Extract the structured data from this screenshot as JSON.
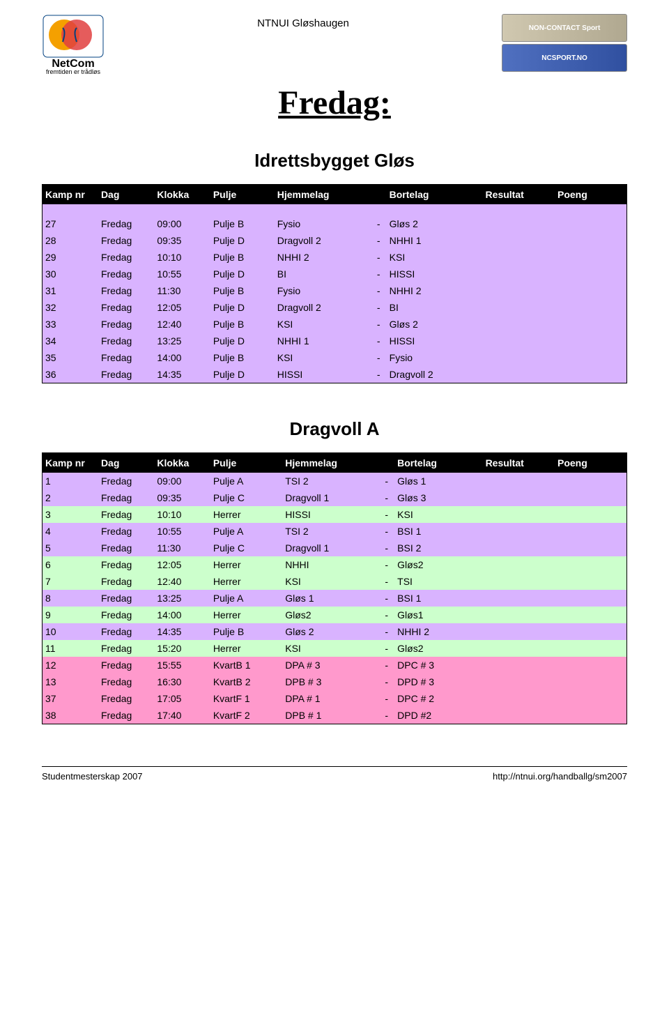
{
  "header": {
    "center_text": "NTNUI Gløshaugen",
    "logo_left_brand": "NetCom",
    "logo_left_tagline": "fremtiden er trådløs",
    "ad_text_1": "NON-CONTACT Sport",
    "ad_text_2": "NCSPORT.NO"
  },
  "main_title": "Fredag:",
  "table1": {
    "title": "Idrettsbygget Gløs",
    "columns": [
      "Kamp nr",
      "Dag",
      "Klokka",
      "Pulje",
      "Hjemmelag",
      "",
      "Bortelag",
      "Resultat",
      "Poeng"
    ],
    "col_widths": [
      "70px",
      "70px",
      "70px",
      "80px",
      "120px",
      "20px",
      "120px",
      "90px",
      "90px"
    ],
    "header_bg": "#000000",
    "header_fg": "#ffffff",
    "colors": {
      "purple": "#d9b3ff"
    },
    "spacer_color": "#d9b3ff",
    "rows": [
      {
        "c": "#d9b3ff",
        "cells": [
          "27",
          "Fredag",
          "09:00",
          "Pulje B",
          "Fysio",
          "-",
          "Gløs 2",
          "",
          ""
        ]
      },
      {
        "c": "#d9b3ff",
        "cells": [
          "28",
          "Fredag",
          "09:35",
          "Pulje D",
          "Dragvoll 2",
          "-",
          "NHHI 1",
          "",
          ""
        ]
      },
      {
        "c": "#d9b3ff",
        "cells": [
          "29",
          "Fredag",
          "10:10",
          "Pulje B",
          "NHHI 2",
          "-",
          "KSI",
          "",
          ""
        ]
      },
      {
        "c": "#d9b3ff",
        "cells": [
          "30",
          "Fredag",
          "10:55",
          "Pulje D",
          "BI",
          "-",
          "HISSI",
          "",
          ""
        ]
      },
      {
        "c": "#d9b3ff",
        "cells": [
          "31",
          "Fredag",
          "11:30",
          "Pulje B",
          "Fysio",
          "-",
          "NHHI 2",
          "",
          ""
        ]
      },
      {
        "c": "#d9b3ff",
        "cells": [
          "32",
          "Fredag",
          "12:05",
          "Pulje D",
          "Dragvoll 2",
          "-",
          "BI",
          "",
          ""
        ]
      },
      {
        "c": "#d9b3ff",
        "cells": [
          "33",
          "Fredag",
          "12:40",
          "Pulje B",
          "KSI",
          "-",
          "Gløs 2",
          "",
          ""
        ]
      },
      {
        "c": "#d9b3ff",
        "cells": [
          "34",
          "Fredag",
          "13:25",
          "Pulje D",
          "NHHI 1",
          "-",
          "HISSI",
          "",
          ""
        ]
      },
      {
        "c": "#d9b3ff",
        "cells": [
          "35",
          "Fredag",
          "14:00",
          "Pulje B",
          "KSI",
          "-",
          "Fysio",
          "",
          ""
        ]
      },
      {
        "c": "#d9b3ff",
        "cells": [
          "36",
          "Fredag",
          "14:35",
          "Pulje D",
          "HISSI",
          "-",
          "Dragvoll 2",
          "",
          ""
        ]
      }
    ]
  },
  "table2": {
    "title": "Dragvoll A",
    "columns": [
      "Kamp nr",
      "Dag",
      "Klokka",
      "Pulje",
      "Hjemmelag",
      "",
      "Bortelag",
      "Resultat",
      "Poeng"
    ],
    "col_widths": [
      "70px",
      "70px",
      "70px",
      "90px",
      "120px",
      "20px",
      "110px",
      "90px",
      "90px"
    ],
    "colors": {
      "purple": "#d9b3ff",
      "green": "#ccffcc",
      "pink": "#ff99cc"
    },
    "rows": [
      {
        "c": "#d9b3ff",
        "cells": [
          "1",
          "Fredag",
          "09:00",
          "Pulje A",
          "TSI 2",
          "-",
          "Gløs 1",
          "",
          ""
        ]
      },
      {
        "c": "#d9b3ff",
        "cells": [
          "2",
          "Fredag",
          "09:35",
          "Pulje C",
          "Dragvoll 1",
          "-",
          "Gløs 3",
          "",
          ""
        ]
      },
      {
        "c": "#ccffcc",
        "cells": [
          "3",
          "Fredag",
          "10:10",
          "Herrer",
          "HISSI",
          "-",
          "KSI",
          "",
          ""
        ]
      },
      {
        "c": "#d9b3ff",
        "cells": [
          "4",
          "Fredag",
          "10:55",
          "Pulje A",
          "TSI 2",
          "-",
          "BSI 1",
          "",
          ""
        ]
      },
      {
        "c": "#d9b3ff",
        "cells": [
          "5",
          "Fredag",
          "11:30",
          "Pulje C",
          "Dragvoll 1",
          "-",
          "BSI 2",
          "",
          ""
        ]
      },
      {
        "c": "#ccffcc",
        "cells": [
          "6",
          "Fredag",
          "12:05",
          "Herrer",
          "NHHI",
          "-",
          "Gløs2",
          "",
          ""
        ]
      },
      {
        "c": "#ccffcc",
        "cells": [
          "7",
          "Fredag",
          "12:40",
          "Herrer",
          "KSI",
          "-",
          "TSI",
          "",
          ""
        ]
      },
      {
        "c": "#d9b3ff",
        "cells": [
          "8",
          "Fredag",
          "13:25",
          "Pulje A",
          "Gløs 1",
          "-",
          "BSI 1",
          "",
          ""
        ]
      },
      {
        "c": "#ccffcc",
        "cells": [
          "9",
          "Fredag",
          "14:00",
          "Herrer",
          "Gløs2",
          "-",
          "Gløs1",
          "",
          ""
        ]
      },
      {
        "c": "#d9b3ff",
        "cells": [
          "10",
          "Fredag",
          "14:35",
          "Pulje B",
          "Gløs 2",
          "-",
          "NHHI 2",
          "",
          ""
        ]
      },
      {
        "c": "#ccffcc",
        "cells": [
          "11",
          "Fredag",
          "15:20",
          "Herrer",
          "KSI",
          "-",
          "Gløs2",
          "",
          ""
        ]
      },
      {
        "c": "#ff99cc",
        "cells": [
          "12",
          "Fredag",
          "15:55",
          "KvartB 1",
          "DPA # 3",
          "-",
          "DPC # 3",
          "",
          ""
        ]
      },
      {
        "c": "#ff99cc",
        "cells": [
          "13",
          "Fredag",
          "16:30",
          "KvartB 2",
          "DPB # 3",
          "-",
          "DPD # 3",
          "",
          ""
        ]
      },
      {
        "c": "#ff99cc",
        "cells": [
          "37",
          "Fredag",
          "17:05",
          "KvartF 1",
          "DPA # 1",
          "-",
          "DPC # 2",
          "",
          ""
        ]
      },
      {
        "c": "#ff99cc",
        "cells": [
          "38",
          "Fredag",
          "17:40",
          "KvartF 2",
          "DPB # 1",
          "-",
          "DPD #2",
          "",
          ""
        ]
      }
    ]
  },
  "footer": {
    "left": "Studentmesterskap 2007",
    "right": "http://ntnui.org/handballg/sm2007"
  }
}
